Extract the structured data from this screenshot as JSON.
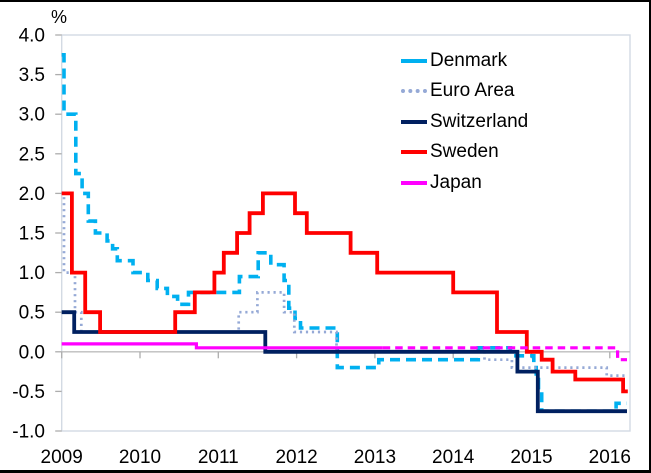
{
  "figure": {
    "y_axis_unit": "%",
    "background": "#FFFFFF",
    "frame_color": "#000000"
  },
  "axes": {
    "y_tick_labels": [
      "4.0",
      "3.5",
      "3.0",
      "2.5",
      "2.0",
      "1.5",
      "1.0",
      "0.5",
      "0.0",
      "-0.5",
      "-1.0"
    ],
    "y_tick_values": [
      4.0,
      3.5,
      3.0,
      2.5,
      2.0,
      1.5,
      1.0,
      0.5,
      0.0,
      -0.5,
      -1.0
    ],
    "x_tick_labels": [
      "2009",
      "2010",
      "2011",
      "2012",
      "2013",
      "2014",
      "2015",
      "2016"
    ],
    "x_tick_values": [
      2009,
      2010,
      2011,
      2012,
      2013,
      2014,
      2015,
      2016
    ],
    "y_range": [
      -1.0,
      4.0
    ],
    "x_range": [
      2009.0,
      2016.26
    ],
    "gridline_y": 0.0,
    "colors": {
      "plot_border": "#D3DAE3",
      "zero_gridline": "#BDBDBD",
      "tick": "#ADADAD",
      "text": "#000000"
    }
  },
  "legend": {
    "position": "top-right",
    "items": [
      "Denmark",
      "Euro Area",
      "Switzerland",
      "Sweden",
      "Japan"
    ]
  },
  "chart_data": {
    "type": "line",
    "step": true,
    "title": "",
    "xlabel": "",
    "ylabel": "%",
    "x_unit": "decimal_year",
    "xlim": [
      2009.0,
      2016.26
    ],
    "ylim": [
      -1.0,
      4.0
    ],
    "grid": "zero-line-only",
    "legend_position": "top-right-inside",
    "series": [
      {
        "name": "Denmark",
        "color": "#00B0F0",
        "line_style": "dashed",
        "stroke_width": 3.6,
        "points": [
          [
            2009.0,
            3.75
          ],
          [
            2009.03,
            3.0
          ],
          [
            2009.18,
            2.25
          ],
          [
            2009.26,
            2.0
          ],
          [
            2009.34,
            1.65
          ],
          [
            2009.43,
            1.5
          ],
          [
            2009.58,
            1.4
          ],
          [
            2009.65,
            1.3
          ],
          [
            2009.71,
            1.15
          ],
          [
            2009.91,
            1.0
          ],
          [
            2010.1,
            0.9
          ],
          [
            2010.22,
            0.8
          ],
          [
            2010.35,
            0.7
          ],
          [
            2010.48,
            0.6
          ],
          [
            2010.62,
            0.75
          ],
          [
            2011.27,
            0.95
          ],
          [
            2011.51,
            1.25
          ],
          [
            2011.67,
            1.1
          ],
          [
            2011.84,
            0.9
          ],
          [
            2011.9,
            0.55
          ],
          [
            2011.98,
            0.42
          ],
          [
            2012.05,
            0.3
          ],
          [
            2012.52,
            -0.2
          ],
          [
            2013.05,
            -0.1
          ],
          [
            2014.32,
            0.05
          ],
          [
            2014.73,
            -0.05
          ],
          [
            2015.03,
            -0.2
          ],
          [
            2015.06,
            -0.35
          ],
          [
            2015.09,
            -0.5
          ],
          [
            2015.13,
            -0.75
          ],
          [
            2016.08,
            -0.65
          ],
          [
            2016.22,
            -0.65
          ]
        ]
      },
      {
        "name": "Euro Area",
        "color": "#95A9D6",
        "line_style": "dotted",
        "stroke_width": 2.7,
        "points": [
          [
            2009.0,
            2.0
          ],
          [
            2009.03,
            1.0
          ],
          [
            2009.17,
            0.5
          ],
          [
            2009.25,
            0.25
          ],
          [
            2011.26,
            0.5
          ],
          [
            2011.5,
            0.75
          ],
          [
            2011.84,
            0.5
          ],
          [
            2011.97,
            0.25
          ],
          [
            2012.51,
            0.0
          ],
          [
            2014.4,
            -0.1
          ],
          [
            2014.75,
            -0.2
          ],
          [
            2015.96,
            -0.3
          ],
          [
            2016.19,
            -0.3
          ]
        ]
      },
      {
        "name": "Switzerland",
        "color": "#002060",
        "line_style": "solid",
        "stroke_width": 3.8,
        "points": [
          [
            2009.0,
            0.5
          ],
          [
            2009.16,
            0.25
          ],
          [
            2011.6,
            0.0
          ],
          [
            2014.82,
            -0.25
          ],
          [
            2015.08,
            -0.75
          ],
          [
            2016.22,
            -0.75
          ]
        ]
      },
      {
        "name": "Sweden",
        "color": "#FF0000",
        "line_style": "solid",
        "stroke_width": 3.8,
        "points": [
          [
            2009.0,
            2.0
          ],
          [
            2009.13,
            1.0
          ],
          [
            2009.3,
            0.5
          ],
          [
            2009.49,
            0.25
          ],
          [
            2010.45,
            0.5
          ],
          [
            2010.7,
            0.75
          ],
          [
            2010.95,
            1.0
          ],
          [
            2011.07,
            1.25
          ],
          [
            2011.24,
            1.5
          ],
          [
            2011.4,
            1.75
          ],
          [
            2011.57,
            2.0
          ],
          [
            2011.98,
            1.75
          ],
          [
            2012.13,
            1.5
          ],
          [
            2012.69,
            1.25
          ],
          [
            2013.03,
            1.0
          ],
          [
            2014.0,
            0.75
          ],
          [
            2014.56,
            0.25
          ],
          [
            2014.94,
            0.0
          ],
          [
            2015.13,
            -0.1
          ],
          [
            2015.27,
            -0.25
          ],
          [
            2015.56,
            -0.35
          ],
          [
            2016.17,
            -0.5
          ],
          [
            2016.23,
            -0.5
          ]
        ]
      },
      {
        "name": "Japan",
        "color": "#FF00FF",
        "line_style": "solid_then_dashed",
        "stroke_width": 3.2,
        "segments": [
          {
            "style": "solid",
            "points": [
              [
                2009.0,
                0.1
              ],
              [
                2010.72,
                0.05
              ],
              [
                2013.1,
                0.05
              ]
            ]
          },
          {
            "style": "dashed_short",
            "points": [
              [
                2013.1,
                0.05
              ],
              [
                2016.1,
                -0.1
              ],
              [
                2016.22,
                -0.1
              ]
            ]
          }
        ]
      }
    ]
  }
}
